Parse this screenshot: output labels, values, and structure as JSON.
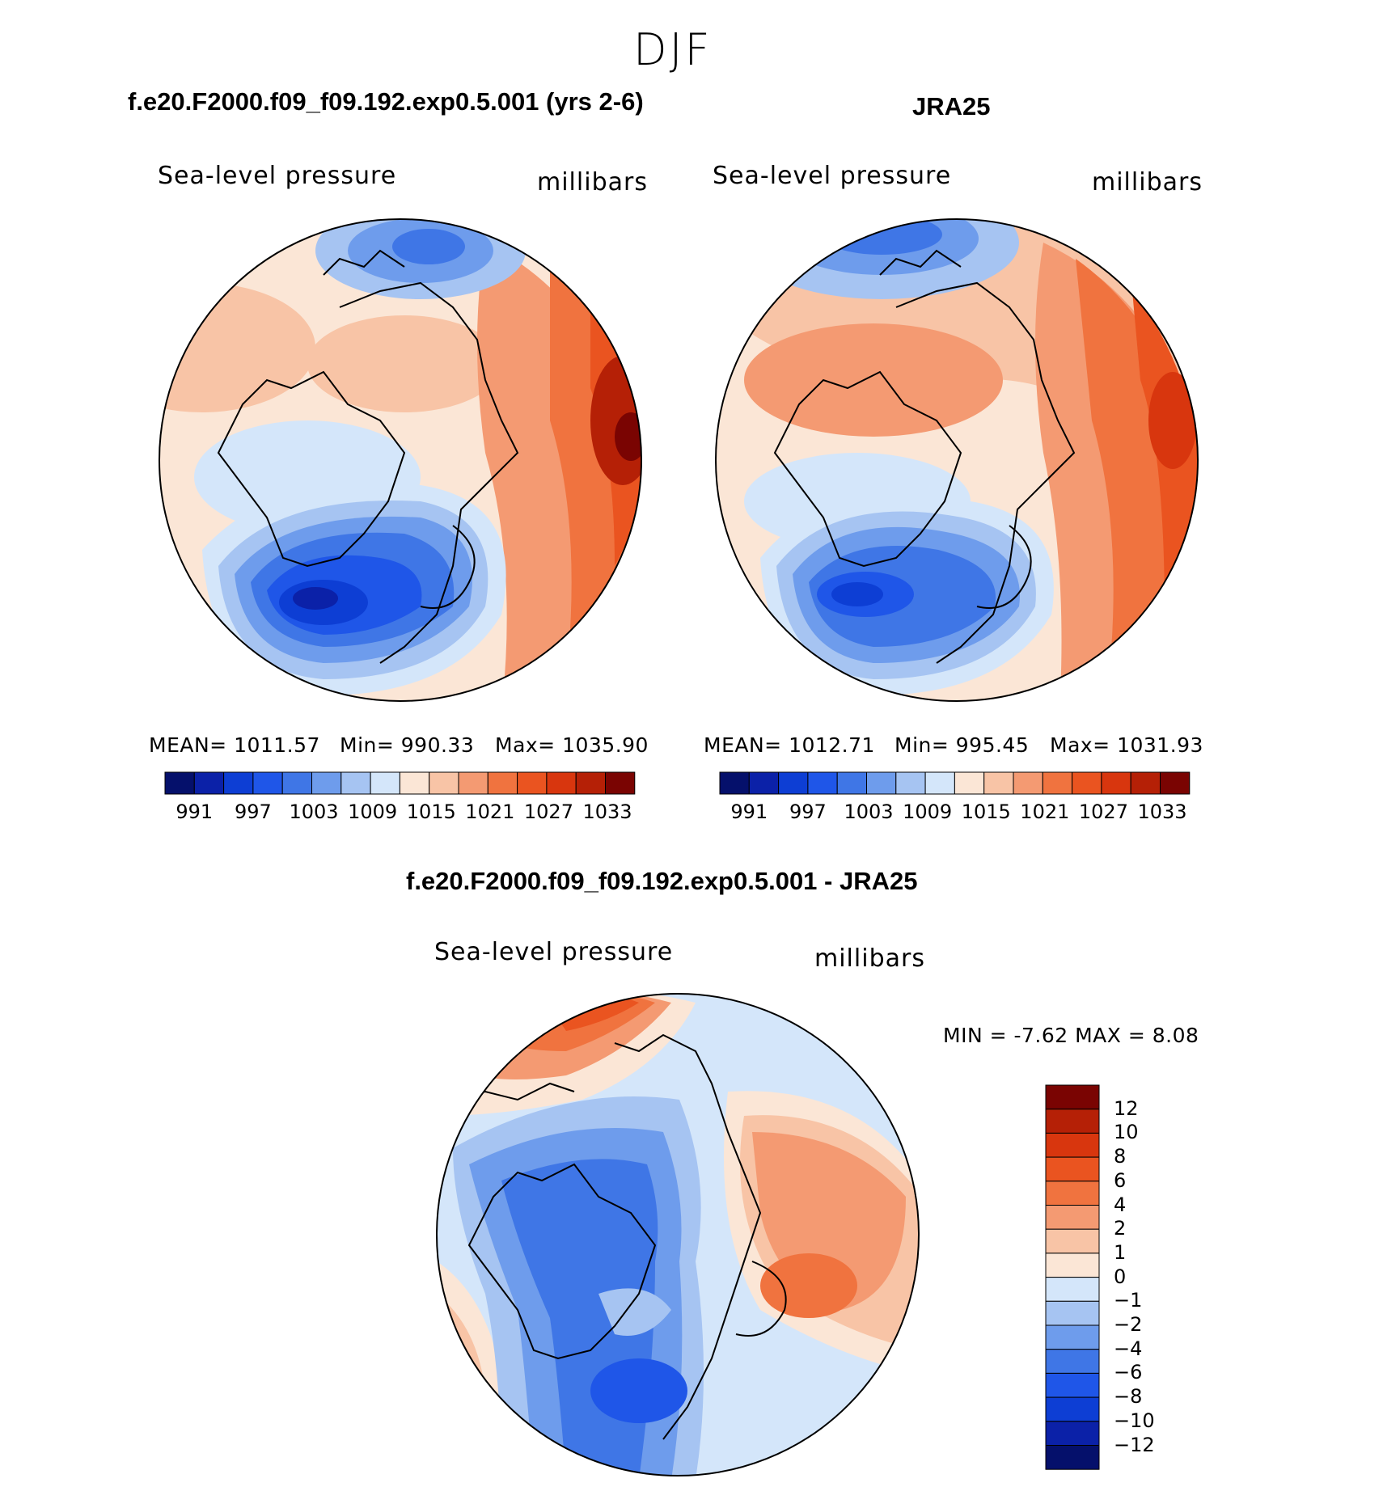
{
  "page": {
    "season_title": "DJF",
    "comparison_title": "f.e20.F2000.f09_f09.192.exp0.5.001 - JRA25"
  },
  "panels": [
    {
      "id": "model",
      "title": "f.e20.F2000.f09_f09.192.exp0.5.001 (yrs 2-6)",
      "variable": "Sea-level pressure",
      "units": "millibars",
      "mean": "MEAN=  1011.57",
      "min": "Min=  990.33",
      "max": "Max=  1035.90"
    },
    {
      "id": "obs",
      "title": "JRA25",
      "variable": "Sea-level pressure",
      "units": "millibars",
      "mean": "MEAN=  1012.71",
      "min": "Min=  995.45",
      "max": "Max=  1031.93"
    }
  ],
  "diff_panel": {
    "variable": "Sea-level pressure",
    "units": "millibars",
    "stats": "MIN =   -7.62  MAX =     8.08"
  },
  "colorbar_abs": {
    "tick_labels": [
      "991",
      "997",
      "1003",
      "1009",
      "1015",
      "1021",
      "1027",
      "1033"
    ],
    "colors": [
      "#05106b",
      "#0b21a8",
      "#0d3ed4",
      "#1f56e8",
      "#3f76e6",
      "#6e9cec",
      "#a6c4f2",
      "#d4e6fa",
      "#fbe6d6",
      "#f8c4a6",
      "#f49a72",
      "#f0733f",
      "#ea5420",
      "#d8360e",
      "#b52006",
      "#7a0402"
    ]
  },
  "colorbar_diff": {
    "tick_labels": [
      "12",
      "10",
      "8",
      "6",
      "4",
      "2",
      "1",
      "0",
      "−1",
      "−2",
      "−4",
      "−6",
      "−8",
      "−10",
      "−12"
    ],
    "colors": [
      "#7a0402",
      "#b52006",
      "#d8360e",
      "#ea5420",
      "#f0733f",
      "#f49a72",
      "#f8c4a6",
      "#fbe6d6",
      "#d4e6fa",
      "#a6c4f2",
      "#6e9cec",
      "#3f76e6",
      "#1f56e8",
      "#0d3ed4",
      "#0b21a8",
      "#05106b"
    ]
  }
}
